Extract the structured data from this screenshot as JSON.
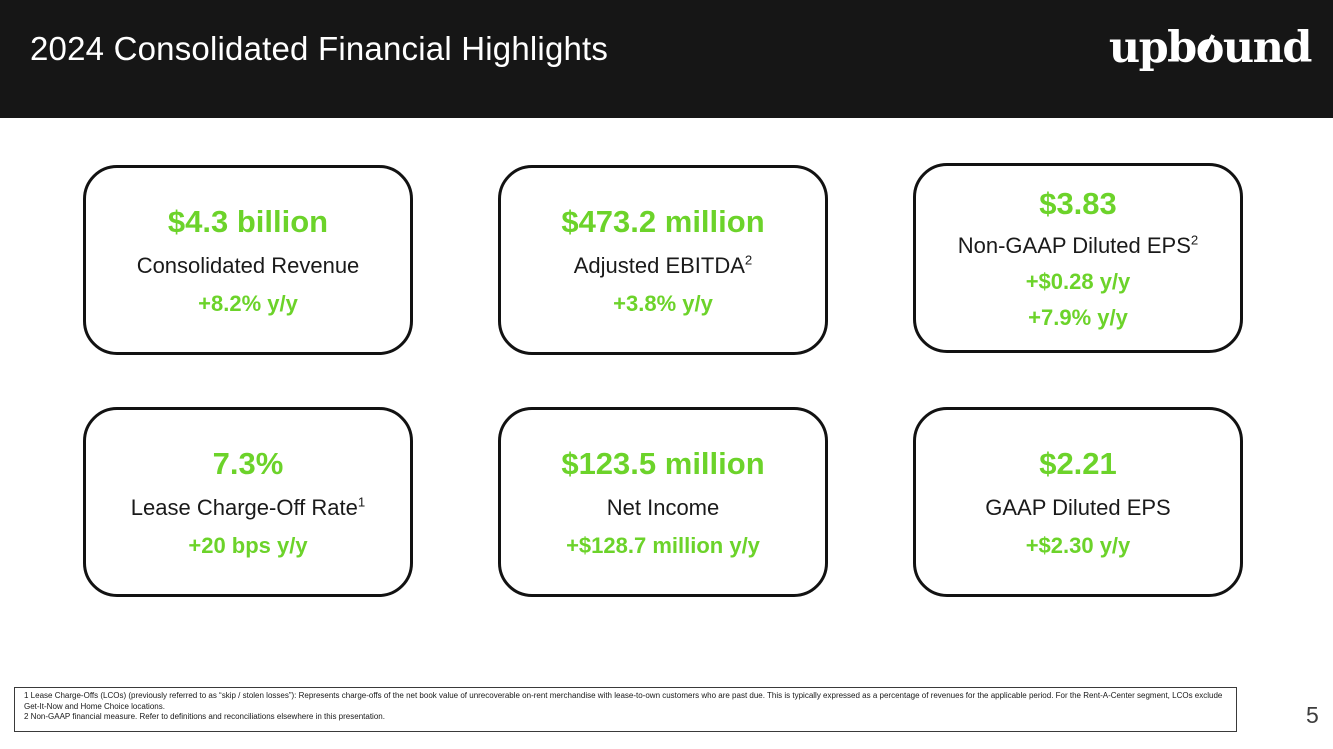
{
  "header": {
    "title": "2024 Consolidated Financial Highlights"
  },
  "brand": {
    "part1": "upb",
    "o_char": "o",
    "part2": "und"
  },
  "cards": [
    {
      "value": "$4.3 billion",
      "label": "Consolidated Revenue",
      "sup": "",
      "delta1": "+8.2% y/y"
    },
    {
      "value": "$473.2 million",
      "label": "Adjusted EBITDA",
      "sup": "2",
      "delta1": "+3.8% y/y"
    },
    {
      "value": "$3.83",
      "label": "Non-GAAP Diluted EPS",
      "sup": "2",
      "delta1": "+$0.28 y/y",
      "delta2": "+7.9% y/y"
    },
    {
      "value": "7.3%",
      "label": "Lease Charge-Off Rate",
      "sup": "1",
      "delta1": "+20 bps y/y"
    },
    {
      "value": "$123.5 million",
      "label": "Net Income",
      "sup": "",
      "delta1": "+$128.7 million y/y"
    },
    {
      "value": "$2.21",
      "label": "GAAP Diluted EPS",
      "sup": "",
      "delta1": "+$2.30 y/y"
    }
  ],
  "footnotes": {
    "note1": "1 Lease Charge-Offs (LCOs) (previously referred to as “skip / stolen losses”): Represents charge-offs of the net book value of unrecoverable on-rent merchandise with lease-to-own customers who are past due. This is typically expressed as a percentage of revenues for the applicable period. For the Rent-A-Center segment, LCOs exclude Get-It-Now and Home Choice locations.",
    "note2": "2 Non-GAAP financial measure. Refer to definitions and reconciliations elsewhere in this presentation."
  },
  "page_number": "5",
  "colors": {
    "accent_green": "#6cd32a",
    "header_bg": "#161616",
    "text_dark": "#1a1a1a"
  }
}
